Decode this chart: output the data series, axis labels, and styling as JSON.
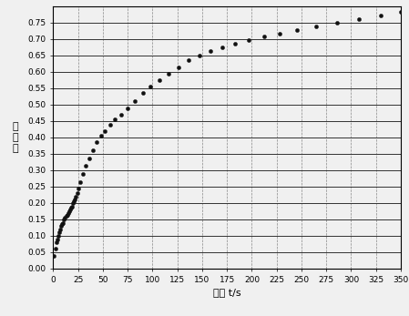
{
  "title": "",
  "xlabel": "时间 t/s",
  "ylabel": "扩散率",
  "xlim": [
    0,
    350
  ],
  "ylim": [
    0,
    0.8
  ],
  "xticks": [
    0,
    25,
    50,
    75,
    100,
    125,
    150,
    175,
    200,
    225,
    250,
    275,
    300,
    325,
    350
  ],
  "yticks": [
    0,
    0.05,
    0.1,
    0.15,
    0.2,
    0.25,
    0.3,
    0.35,
    0.4,
    0.45,
    0.5,
    0.55,
    0.6,
    0.65,
    0.7,
    0.75
  ],
  "data_x": [
    1,
    2,
    3,
    4,
    5,
    6,
    7,
    8,
    9,
    10,
    11,
    12,
    13,
    14,
    15,
    16,
    17,
    18,
    19,
    20,
    21,
    22,
    23,
    24,
    25,
    27,
    30,
    33,
    36,
    40,
    44,
    48,
    52,
    57,
    62,
    68,
    75,
    82,
    90,
    98,
    107,
    116,
    126,
    136,
    147,
    158,
    170,
    183,
    197,
    212,
    228,
    245,
    265,
    286,
    308,
    330,
    350
  ],
  "data_y": [
    0.04,
    0.06,
    0.08,
    0.09,
    0.1,
    0.11,
    0.12,
    0.13,
    0.135,
    0.14,
    0.15,
    0.155,
    0.16,
    0.165,
    0.17,
    0.175,
    0.18,
    0.185,
    0.19,
    0.2,
    0.205,
    0.21,
    0.22,
    0.23,
    0.245,
    0.265,
    0.29,
    0.315,
    0.335,
    0.36,
    0.385,
    0.405,
    0.42,
    0.44,
    0.455,
    0.47,
    0.49,
    0.51,
    0.535,
    0.555,
    0.575,
    0.595,
    0.615,
    0.635,
    0.65,
    0.663,
    0.675,
    0.686,
    0.697,
    0.707,
    0.717,
    0.727,
    0.739,
    0.75,
    0.762,
    0.773,
    0.782
  ],
  "marker_color": "#111111",
  "marker_size": 3,
  "grid_h_color": "#333333",
  "grid_v_color": "#888888",
  "bg_color": "#f0f0f0",
  "plot_bg_color": "#f0f0f0"
}
